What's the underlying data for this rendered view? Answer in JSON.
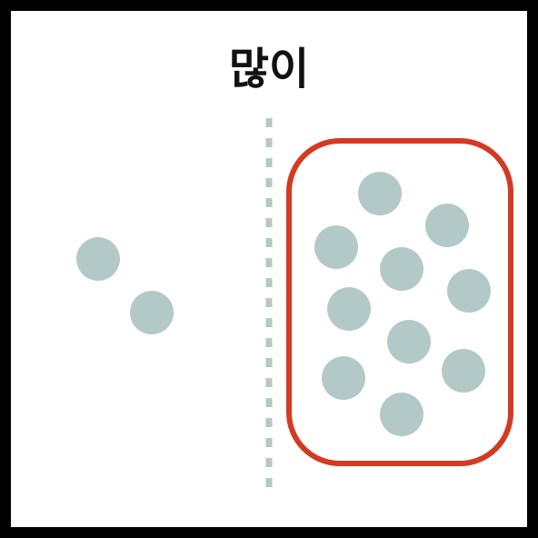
{
  "title": "많이",
  "colors": {
    "frame": "#000000",
    "dot": "#b3c9c8",
    "divider": "#b3c9c8",
    "highlight": "#d43a22",
    "background": "#ffffff"
  },
  "groups": {
    "few": {
      "count": 2
    },
    "many": {
      "count": 10,
      "highlighted": true
    }
  }
}
